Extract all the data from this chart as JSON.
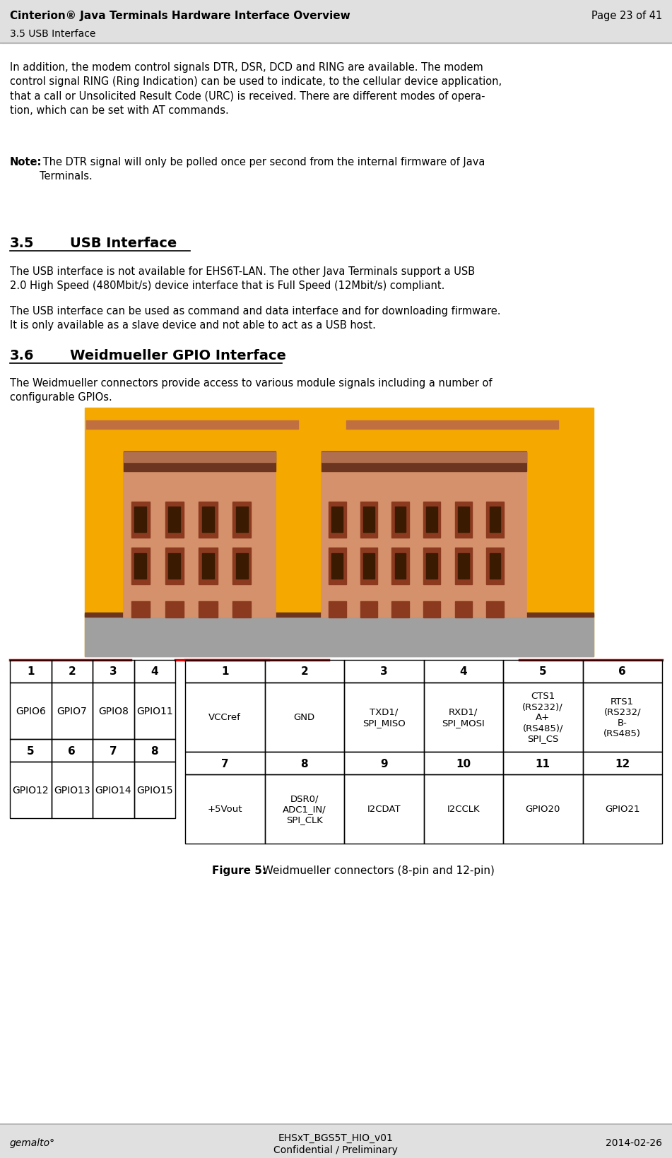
{
  "header_title": "Cinterion® Java Terminals Hardware Interface Overview",
  "header_section": "3.5 USB Interface",
  "header_page": "Page 23 of 41",
  "footer_left": "gemalto°",
  "footer_center_line1": "EHSxT_BGS5T_HIO_v01",
  "footer_center_line2": "Confidential / Preliminary",
  "footer_right": "2014-02-26",
  "para1": "In addition, the modem control signals DTR, DSR, DCD and RING are available. The modem\ncontrol signal RING (Ring Indication) can be used to indicate, to the cellular device application,\nthat a call or Unsolicited Result Code (URC) is received. There are different modes of opera-\ntion, which can be set with AT commands.",
  "note_bold": "Note:",
  "note_text": " The DTR signal will only be polled once per second from the internal firmware of Java\nTerminals.",
  "section35_num": "3.5",
  "section35_title": "USB Interface",
  "para2": "The USB interface is not available for EHS6T-LAN. The other Java Terminals support a USB\n2.0 High Speed (480Mbit/s) device interface that is Full Speed (12Mbit/s) compliant.",
  "para3": "The USB interface can be used as command and data interface and for downloading firmware.\nIt is only available as a slave device and not able to act as a USB host.",
  "section36_num": "3.6",
  "section36_title": "Weidmueller GPIO Interface",
  "para4": "The Weidmueller connectors provide access to various module signals including a number of\nconfigurable GPIOs.",
  "figure_caption_bold": "Figure 5:",
  "figure_caption_rest": "  Weidmueller connectors (8-pin and 12-pin)",
  "left_table_header": [
    "1",
    "2",
    "3",
    "4"
  ],
  "left_table_row1": [
    "GPIO6",
    "GPIO7",
    "GPIO8",
    "GPIO11"
  ],
  "left_table_header2": [
    "5",
    "6",
    "7",
    "8"
  ],
  "left_table_row2": [
    "GPIO12",
    "GPIO13",
    "GPIO14",
    "GPIO15"
  ],
  "right_table_header": [
    "1",
    "2",
    "3",
    "4",
    "5",
    "6"
  ],
  "right_table_row1": [
    "VCCref",
    "GND",
    "TXD1/\nSPI_MISO",
    "RXD1/\nSPI_MOSI",
    "CTS1\n(RS232)/\nA+\n(RS485)/\nSPI_CS",
    "RTS1\n(RS232/\nB-\n(RS485)"
  ],
  "right_table_header2": [
    "7",
    "8",
    "9",
    "10",
    "11",
    "12"
  ],
  "right_table_row2": [
    "+5Vout",
    "DSR0/\nADC1_IN/\nSPI_CLK",
    "I2CDAT",
    "I2CCLK",
    "GPIO20",
    "GPIO21"
  ],
  "bg_color": "#ffffff",
  "header_bg": "#e0e0e0",
  "footer_bg": "#e0e0e0",
  "text_color": "#000000",
  "connector_orange": "#f5a800",
  "connector_body": "#d4916b",
  "connector_slot": "#8B3A20",
  "connector_inner": "#3a1a00",
  "connector_dark_strip": "#6b3520",
  "gray_base": "#a0a0a0",
  "red_line": "#dd0000",
  "table_border": "#000000"
}
